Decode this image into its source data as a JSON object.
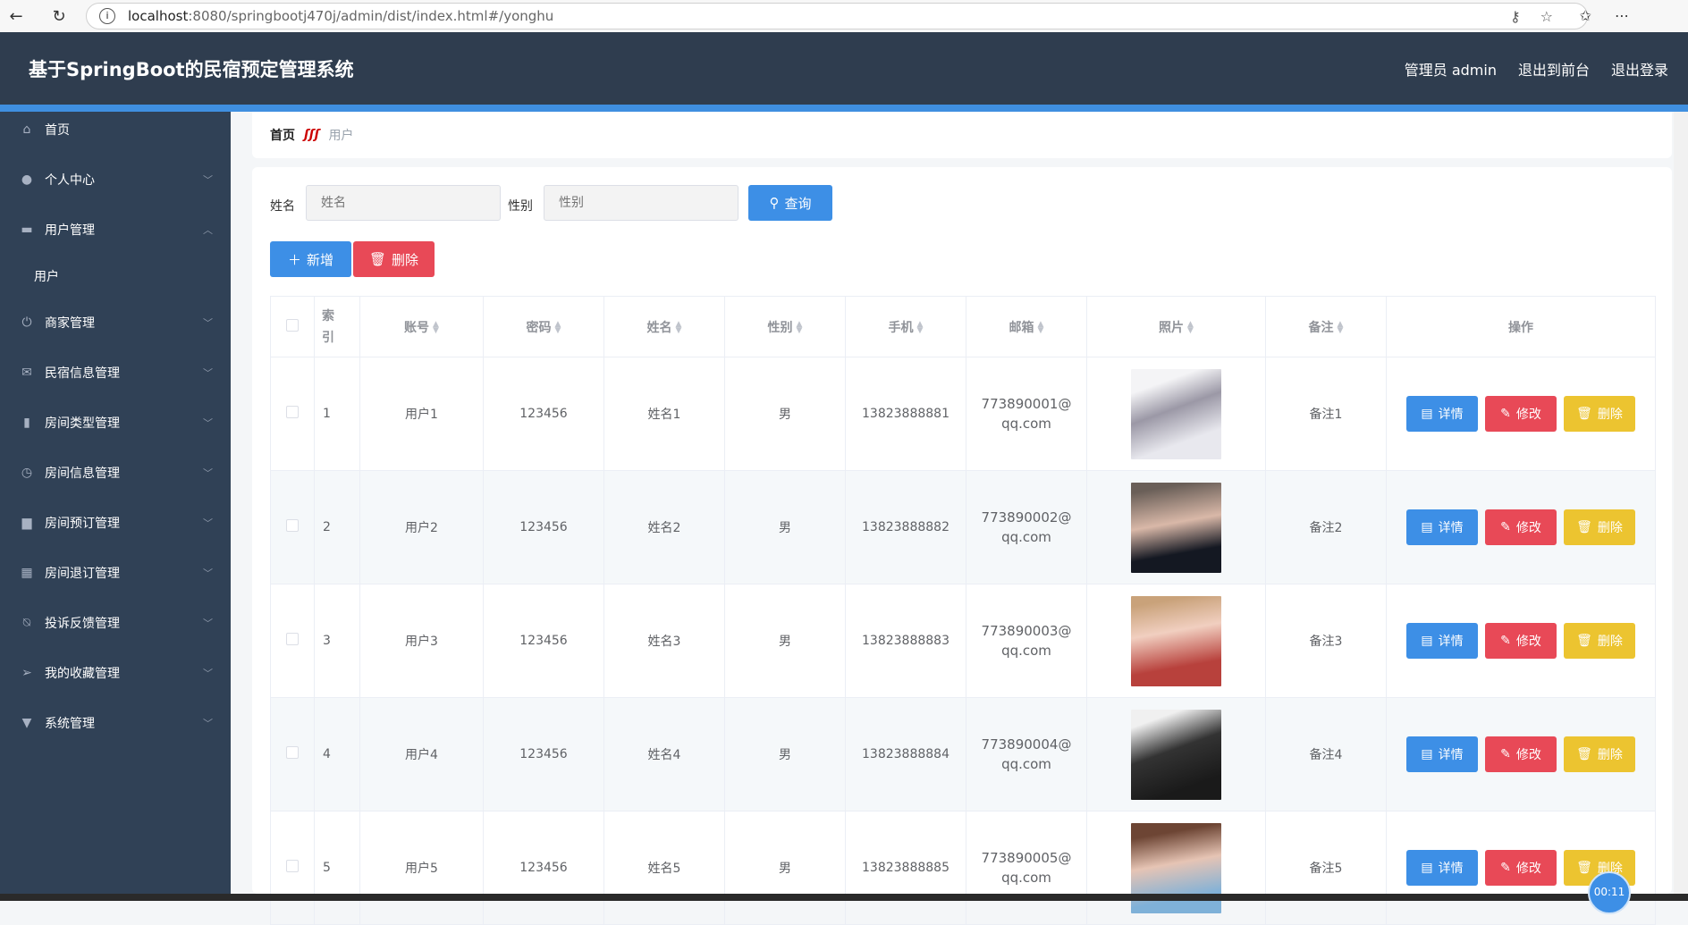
{
  "browser": {
    "url_host": "localhost",
    "url_rest": ":8080/springbootj470j/admin/dist/index.html#/yonghu"
  },
  "header": {
    "title": "基于SpringBoot的民宿预定管理系统",
    "user": "管理员 admin",
    "front": "退出到前台",
    "logout": "退出登录"
  },
  "sidebar": {
    "items": [
      {
        "label": "首页",
        "icon": "home-icon",
        "glyph": "⌂",
        "chev": ""
      },
      {
        "label": "个人中心",
        "icon": "user-icon",
        "glyph": "●",
        "chev": "﹀"
      },
      {
        "label": "用户管理",
        "icon": "monitor-icon",
        "glyph": "▬",
        "chev": "︿"
      },
      {
        "label": "用户",
        "icon": "",
        "glyph": "",
        "chev": "",
        "sub": true
      },
      {
        "label": "商家管理",
        "icon": "power-icon",
        "glyph": "⏻",
        "chev": "﹀"
      },
      {
        "label": "民宿信息管理",
        "icon": "mail-icon",
        "glyph": "✉",
        "chev": "﹀"
      },
      {
        "label": "房间类型管理",
        "icon": "chart-icon",
        "glyph": "▮",
        "chev": "﹀"
      },
      {
        "label": "房间信息管理",
        "icon": "gauge-icon",
        "glyph": "◷",
        "chev": "﹀"
      },
      {
        "label": "房间预订管理",
        "icon": "printer-icon",
        "glyph": "▆",
        "chev": "﹀"
      },
      {
        "label": "房间退订管理",
        "icon": "grid-icon",
        "glyph": "▦",
        "chev": "﹀"
      },
      {
        "label": "投诉反馈管理",
        "icon": "bell-off-icon",
        "glyph": "⍉",
        "chev": "﹀"
      },
      {
        "label": "我的收藏管理",
        "icon": "send-icon",
        "glyph": "➢",
        "chev": "﹀"
      },
      {
        "label": "系统管理",
        "icon": "setting-icon",
        "glyph": "▼",
        "chev": "﹀"
      }
    ]
  },
  "breadcrumb": {
    "home": "首页",
    "current": "用户"
  },
  "search": {
    "name_label": "姓名",
    "name_placeholder": "姓名",
    "gender_label": "性别",
    "gender_placeholder": "性别",
    "query": "查询"
  },
  "actions": {
    "add": "新增",
    "delete": "删除"
  },
  "table": {
    "columns": [
      "索引",
      "账号",
      "密码",
      "姓名",
      "性别",
      "手机",
      "邮箱",
      "照片",
      "备注",
      "操作"
    ],
    "ops": {
      "detail": "详情",
      "edit": "修改",
      "delete": "删除"
    },
    "rows": [
      {
        "index": "1",
        "account": "用户1",
        "password": "123456",
        "name": "姓名1",
        "gender": "男",
        "phone": "13823888881",
        "email": "773890001@qq.com",
        "note": "备注1"
      },
      {
        "index": "2",
        "account": "用户2",
        "password": "123456",
        "name": "姓名2",
        "gender": "男",
        "phone": "13823888882",
        "email": "773890002@qq.com",
        "note": "备注2"
      },
      {
        "index": "3",
        "account": "用户3",
        "password": "123456",
        "name": "姓名3",
        "gender": "男",
        "phone": "13823888883",
        "email": "773890003@qq.com",
        "note": "备注3"
      },
      {
        "index": "4",
        "account": "用户4",
        "password": "123456",
        "name": "姓名4",
        "gender": "男",
        "phone": "13823888884",
        "email": "773890004@qq.com",
        "note": "备注4"
      },
      {
        "index": "5",
        "account": "用户5",
        "password": "123456",
        "name": "姓名5",
        "gender": "男",
        "phone": "13823888885",
        "email": "773890005@qq.com",
        "note": "备注5"
      }
    ]
  },
  "timer": "00:11"
}
